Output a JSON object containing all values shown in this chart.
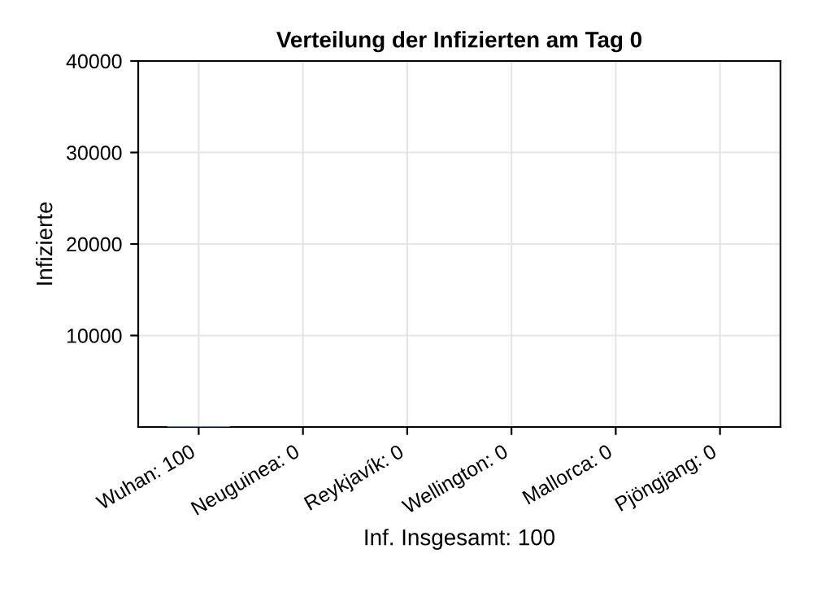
{
  "chart_data": {
    "type": "bar",
    "title": "Verteilung der Infizierten am Tag 0",
    "categories": [
      "Wuhan: 100",
      "Neuguinea: 0",
      "Reykjavík: 0",
      "Wellington: 0",
      "Mallorca: 0",
      "Pjöngjang: 0"
    ],
    "values": [
      100,
      0,
      0,
      0,
      0,
      0
    ],
    "color": "#3e7fc1",
    "ylabel": "Infizierte",
    "xlabel": "Inf. Insgesamt: 100",
    "ylim": [
      0,
      40000
    ],
    "yticks": [
      10000,
      20000,
      30000,
      40000
    ],
    "grid": true
  }
}
